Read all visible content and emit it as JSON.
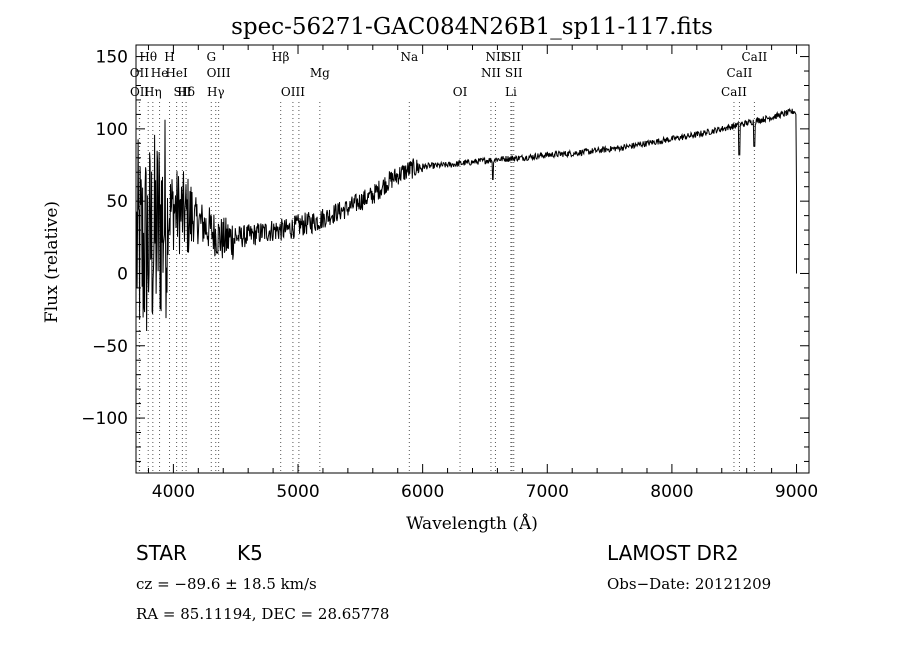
{
  "chart_data": {
    "type": "line",
    "title": "spec-56271-GAC084N26B1_sp11-117.fits",
    "xlabel": "Wavelength (Å)",
    "ylabel": "Flux (relative)",
    "xlim": [
      3700,
      9100
    ],
    "ylim": [
      -138,
      158
    ],
    "xticks": [
      4000,
      5000,
      6000,
      7000,
      8000,
      9000
    ],
    "yticks": [
      -100,
      -50,
      0,
      50,
      100,
      150
    ],
    "xtick_labels": [
      "4000",
      "5000",
      "6000",
      "7000",
      "8000",
      "9000"
    ],
    "ytick_labels": [
      "−100",
      "−50",
      "0",
      "50",
      "100",
      "150"
    ],
    "grid": false,
    "continuum": [
      [
        3700,
        20
      ],
      [
        3750,
        15
      ],
      [
        3800,
        20
      ],
      [
        3850,
        25
      ],
      [
        3900,
        35
      ],
      [
        3950,
        42
      ],
      [
        4000,
        45
      ],
      [
        4100,
        40
      ],
      [
        4200,
        36
      ],
      [
        4300,
        30
      ],
      [
        4400,
        23
      ],
      [
        4500,
        25
      ],
      [
        4600,
        26
      ],
      [
        4700,
        28
      ],
      [
        4800,
        30
      ],
      [
        4900,
        30
      ],
      [
        5000,
        33
      ],
      [
        5100,
        35
      ],
      [
        5200,
        38
      ],
      [
        5300,
        42
      ],
      [
        5400,
        45
      ],
      [
        5500,
        50
      ],
      [
        5600,
        54
      ],
      [
        5700,
        62
      ],
      [
        5800,
        68
      ],
      [
        5900,
        72
      ],
      [
        6000,
        74
      ],
      [
        6200,
        75
      ],
      [
        6400,
        77
      ],
      [
        6600,
        79
      ],
      [
        6800,
        80
      ],
      [
        7000,
        82
      ],
      [
        7200,
        83
      ],
      [
        7400,
        85
      ],
      [
        7600,
        87
      ],
      [
        7800,
        90
      ],
      [
        8000,
        93
      ],
      [
        8200,
        96
      ],
      [
        8400,
        100
      ],
      [
        8600,
        104
      ],
      [
        8800,
        108
      ],
      [
        8970,
        112
      ]
    ],
    "features": [
      {
        "x": 8542,
        "y": 82
      },
      {
        "x": 8662,
        "y": 88
      },
      {
        "x": 6563,
        "y": 65
      },
      {
        "x": 9000,
        "y": 0
      }
    ],
    "spectral_lines": [
      {
        "label": "Hθ",
        "x": 3798,
        "row": 0
      },
      {
        "label": "OII",
        "x": 3727,
        "row": 1
      },
      {
        "label": "OII",
        "x": 3729,
        "row": 2
      },
      {
        "label": "Hη",
        "x": 3835,
        "row": 2
      },
      {
        "label": "He",
        "x": 3889,
        "row": 1
      },
      {
        "label": "H",
        "x": 3969,
        "row": 0
      },
      {
        "label": "HeI",
        "x": 4026,
        "row": 1
      },
      {
        "label": "Hδ",
        "x": 4102,
        "row": 2
      },
      {
        "label": "SII",
        "x": 4072,
        "row": 3
      },
      {
        "label": "G",
        "x": 4304,
        "row": 0
      },
      {
        "label": "OIII",
        "x": 4363,
        "row": 1
      },
      {
        "label": "Hγ",
        "x": 4340,
        "row": 3
      },
      {
        "label": "Hβ",
        "x": 4861,
        "row": 0
      },
      {
        "label": "OIII",
        "x": 4959,
        "row": 3
      },
      {
        "label": "OIII",
        "x": 5007,
        "row": -1
      },
      {
        "label": "Mg",
        "x": 5175,
        "row": 1
      },
      {
        "label": "Na",
        "x": 5893,
        "row": 0
      },
      {
        "label": "OI",
        "x": 6300,
        "row": 3
      },
      {
        "label": "NII",
        "x": 6548,
        "row": 1
      },
      {
        "label": "NII",
        "x": 6584,
        "row": 0
      },
      {
        "label": "SII",
        "x": 6717,
        "row": 0
      },
      {
        "label": "SII",
        "x": 6731,
        "row": 1
      },
      {
        "label": "Li",
        "x": 6708,
        "row": 3
      },
      {
        "label": "CaII",
        "x": 8498,
        "row": 3
      },
      {
        "label": "CaII",
        "x": 8542,
        "row": 1
      },
      {
        "label": "CaII",
        "x": 8662,
        "row": 0
      }
    ]
  },
  "info": {
    "object_class": "STAR",
    "subclass": "K5",
    "survey": "LAMOST DR2",
    "cz": "cz = −89.6 ± 18.5 km/s",
    "obs_date": "Obs−Date: 20121209",
    "coords": "RA =  85.11194, DEC =  28.65778"
  }
}
